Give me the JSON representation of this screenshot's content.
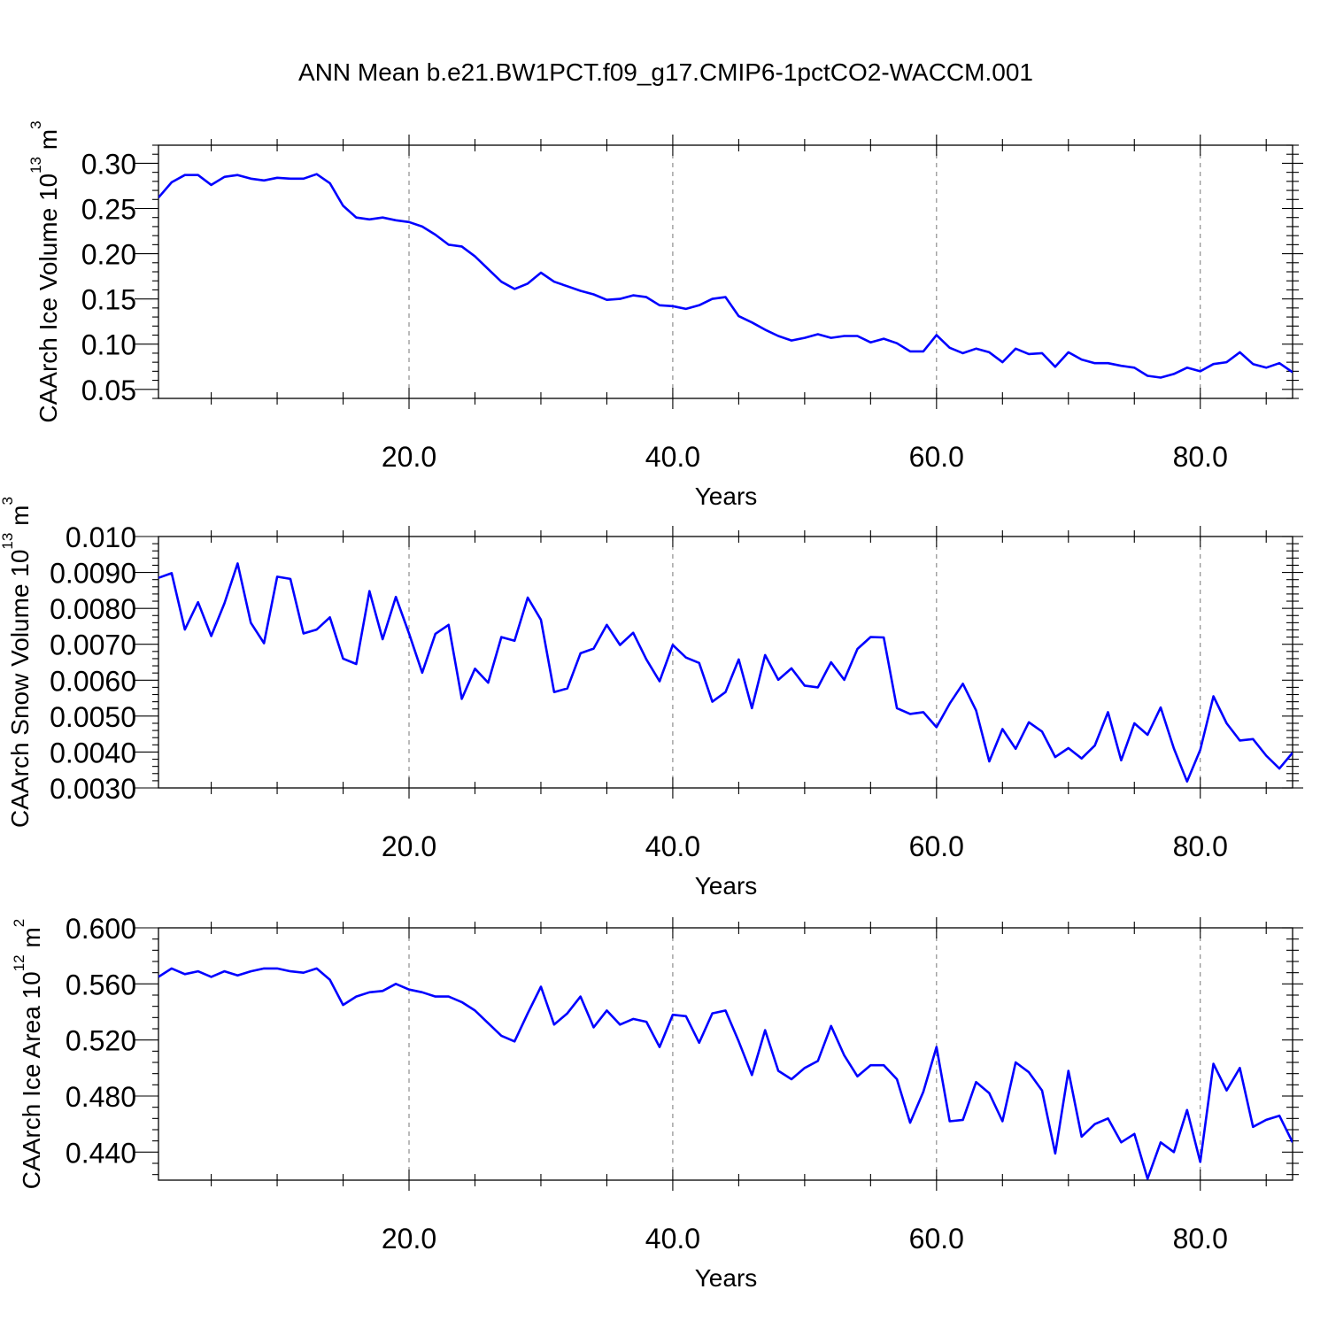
{
  "figure": {
    "title": "ANN Mean b.e21.BW1PCT.f09_g17.CMIP6-1pctCO2-WACCM.001",
    "line_color": "#0000ff"
  },
  "chart_data": [
    {
      "type": "line",
      "xlabel": "Years",
      "ylabel": "CAArch Ice Volume 10",
      "ylabel_exp": "13",
      "ylabel_unit": " m",
      "ylabel_unit_exp": "3",
      "xlim": [
        1,
        87
      ],
      "ylim": [
        0.04,
        0.32
      ],
      "xticks": [
        20,
        40,
        60,
        80
      ],
      "xtick_labels": [
        "20.0",
        "40.0",
        "60.0",
        "80.0"
      ],
      "yticks": [
        0.05,
        0.1,
        0.15,
        0.2,
        0.25,
        0.3
      ],
      "ytick_labels": [
        "0.05",
        "0.10",
        "0.15",
        "0.20",
        "0.25",
        "0.30"
      ],
      "grid": "x-dashed",
      "series": [
        {
          "x": [
            1,
            2,
            3,
            4,
            5,
            6,
            7,
            8,
            9,
            10,
            11,
            12,
            13,
            14,
            15,
            16,
            17,
            18,
            19,
            20,
            21,
            22,
            23,
            24,
            25,
            26,
            27,
            28,
            29,
            30,
            31,
            32,
            33,
            34,
            35,
            36,
            37,
            38,
            39,
            40,
            41,
            42,
            43,
            44,
            45,
            46,
            47,
            48,
            49,
            50,
            51,
            52,
            53,
            54,
            55,
            56,
            57,
            58,
            59,
            60,
            61,
            62,
            63,
            64,
            65,
            66,
            67,
            68,
            69,
            70,
            71,
            72,
            73,
            74,
            75,
            76,
            77,
            78,
            79,
            80,
            81,
            82,
            83,
            84,
            85,
            86,
            87
          ],
          "values": [
            0.262,
            0.279,
            0.287,
            0.287,
            0.276,
            0.285,
            0.287,
            0.283,
            0.281,
            0.284,
            0.283,
            0.283,
            0.288,
            0.278,
            0.253,
            0.24,
            0.238,
            0.24,
            0.237,
            0.235,
            0.23,
            0.221,
            0.21,
            0.208,
            0.197,
            0.183,
            0.169,
            0.161,
            0.167,
            0.179,
            0.169,
            0.164,
            0.159,
            0.155,
            0.149,
            0.15,
            0.154,
            0.152,
            0.143,
            0.142,
            0.139,
            0.143,
            0.15,
            0.152,
            0.131,
            0.124,
            0.116,
            0.109,
            0.104,
            0.107,
            0.111,
            0.107,
            0.109,
            0.109,
            0.102,
            0.106,
            0.101,
            0.092,
            0.092,
            0.11,
            0.096,
            0.09,
            0.095,
            0.091,
            0.08,
            0.095,
            0.089,
            0.09,
            0.075,
            0.091,
            0.083,
            0.079,
            0.079,
            0.076,
            0.074,
            0.065,
            0.063,
            0.067,
            0.074,
            0.07,
            0.078,
            0.08,
            0.091,
            0.078,
            0.074,
            0.079,
            0.069
          ]
        }
      ]
    },
    {
      "type": "line",
      "xlabel": "Years",
      "ylabel": "CAArch Snow Volume 10",
      "ylabel_exp": "13",
      "ylabel_unit": " m",
      "ylabel_unit_exp": "3",
      "xlim": [
        1,
        87
      ],
      "ylim": [
        0.003,
        0.01
      ],
      "xticks": [
        20,
        40,
        60,
        80
      ],
      "xtick_labels": [
        "20.0",
        "40.0",
        "60.0",
        "80.0"
      ],
      "yticks": [
        0.003,
        0.004,
        0.005,
        0.006,
        0.007,
        0.008,
        0.009,
        0.01
      ],
      "ytick_labels": [
        "0.0030",
        "0.0040",
        "0.0050",
        "0.0060",
        "0.0070",
        "0.0080",
        "0.0090",
        "0.010"
      ],
      "grid": "x-dashed",
      "series": [
        {
          "x": [
            1,
            2,
            3,
            4,
            5,
            6,
            7,
            8,
            9,
            10,
            11,
            12,
            13,
            14,
            15,
            16,
            17,
            18,
            19,
            20,
            21,
            22,
            23,
            24,
            25,
            26,
            27,
            28,
            29,
            30,
            31,
            32,
            33,
            34,
            35,
            36,
            37,
            38,
            39,
            40,
            41,
            42,
            43,
            44,
            45,
            46,
            47,
            48,
            49,
            50,
            51,
            52,
            53,
            54,
            55,
            56,
            57,
            58,
            59,
            60,
            61,
            62,
            63,
            64,
            65,
            66,
            67,
            68,
            69,
            70,
            71,
            72,
            73,
            74,
            75,
            76,
            77,
            78,
            79,
            80,
            81,
            82,
            83,
            84,
            85,
            86,
            87
          ],
          "values": [
            0.00885,
            0.00898,
            0.00741,
            0.00817,
            0.00723,
            0.00814,
            0.00925,
            0.0076,
            0.00703,
            0.00888,
            0.00882,
            0.0073,
            0.00741,
            0.00775,
            0.0066,
            0.00645,
            0.00848,
            0.00714,
            0.00832,
            0.0073,
            0.00621,
            0.00729,
            0.00754,
            0.00548,
            0.00632,
            0.00593,
            0.0072,
            0.0071,
            0.0083,
            0.00768,
            0.00567,
            0.00577,
            0.00675,
            0.00688,
            0.00754,
            0.00698,
            0.00732,
            0.00658,
            0.00597,
            0.00698,
            0.00663,
            0.00648,
            0.0054,
            0.00567,
            0.00658,
            0.00522,
            0.0067,
            0.00601,
            0.00633,
            0.00585,
            0.0058,
            0.0065,
            0.00601,
            0.00687,
            0.0072,
            0.00719,
            0.00522,
            0.00506,
            0.00511,
            0.00469,
            0.00535,
            0.0059,
            0.00516,
            0.00374,
            0.00464,
            0.00409,
            0.00483,
            0.00457,
            0.00386,
            0.00411,
            0.00382,
            0.00418,
            0.00511,
            0.00377,
            0.0048,
            0.00448,
            0.00524,
            0.0041,
            0.00318,
            0.00406,
            0.00555,
            0.0048,
            0.00432,
            0.00436,
            0.0039,
            0.00354,
            0.00398
          ]
        }
      ]
    },
    {
      "type": "line",
      "xlabel": "Years",
      "ylabel": "CAArch Ice Area 10",
      "ylabel_exp": "12",
      "ylabel_unit": " m",
      "ylabel_unit_exp": "2",
      "xlim": [
        1,
        87
      ],
      "ylim": [
        0.42,
        0.6
      ],
      "xticks": [
        20,
        40,
        60,
        80
      ],
      "xtick_labels": [
        "20.0",
        "40.0",
        "60.0",
        "80.0"
      ],
      "yticks": [
        0.44,
        0.48,
        0.52,
        0.56,
        0.6
      ],
      "ytick_labels": [
        "0.440",
        "0.480",
        "0.520",
        "0.560",
        "0.600"
      ],
      "grid": "x-dashed",
      "series": [
        {
          "x": [
            1,
            2,
            3,
            4,
            5,
            6,
            7,
            8,
            9,
            10,
            11,
            12,
            13,
            14,
            15,
            16,
            17,
            18,
            19,
            20,
            21,
            22,
            23,
            24,
            25,
            26,
            27,
            28,
            29,
            30,
            31,
            32,
            33,
            34,
            35,
            36,
            37,
            38,
            39,
            40,
            41,
            42,
            43,
            44,
            45,
            46,
            47,
            48,
            49,
            50,
            51,
            52,
            53,
            54,
            55,
            56,
            57,
            58,
            59,
            60,
            61,
            62,
            63,
            64,
            65,
            66,
            67,
            68,
            69,
            70,
            71,
            72,
            73,
            74,
            75,
            76,
            77,
            78,
            79,
            80,
            81,
            82,
            83,
            84,
            85,
            86,
            87
          ],
          "values": [
            0.565,
            0.571,
            0.567,
            0.569,
            0.565,
            0.569,
            0.566,
            0.569,
            0.571,
            0.571,
            0.569,
            0.568,
            0.571,
            0.563,
            0.545,
            0.551,
            0.554,
            0.555,
            0.56,
            0.556,
            0.554,
            0.551,
            0.551,
            0.547,
            0.541,
            0.532,
            0.523,
            0.519,
            0.539,
            0.558,
            0.531,
            0.539,
            0.551,
            0.529,
            0.541,
            0.531,
            0.535,
            0.533,
            0.515,
            0.538,
            0.537,
            0.518,
            0.539,
            0.541,
            0.519,
            0.495,
            0.527,
            0.498,
            0.492,
            0.5,
            0.505,
            0.53,
            0.509,
            0.494,
            0.502,
            0.502,
            0.492,
            0.461,
            0.483,
            0.515,
            0.462,
            0.463,
            0.49,
            0.482,
            0.462,
            0.504,
            0.497,
            0.484,
            0.439,
            0.498,
            0.451,
            0.46,
            0.464,
            0.447,
            0.453,
            0.421,
            0.447,
            0.44,
            0.47,
            0.433,
            0.503,
            0.484,
            0.5,
            0.458,
            0.463,
            0.466,
            0.447
          ]
        }
      ]
    }
  ]
}
